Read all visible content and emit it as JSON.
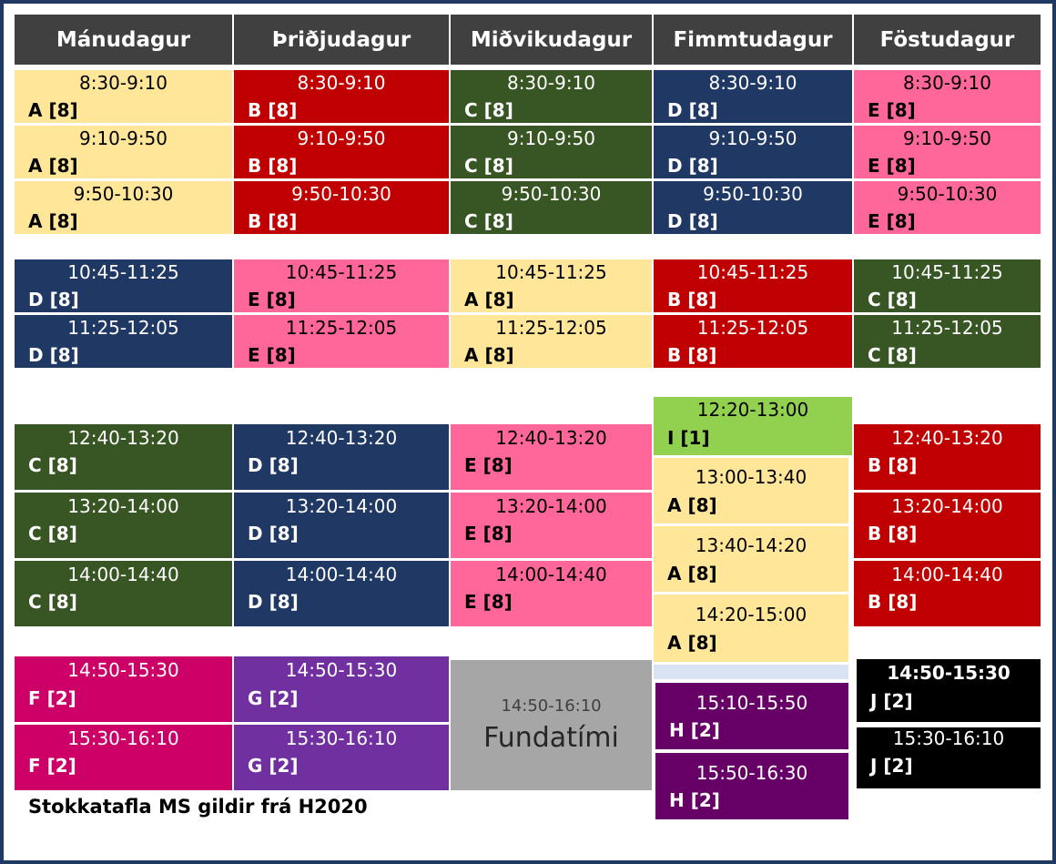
{
  "days": [
    "Mánudagur",
    "Þriðjudagur",
    "Miðvikudagur",
    "Fimmtudagur",
    "Föstudagur"
  ],
  "blocks": {
    "mon": [
      {
        "time": "8:30-9:10",
        "code": "A [8]"
      },
      {
        "time": "9:10-9:50",
        "code": "A [8]"
      },
      {
        "time": "9:50-10:30",
        "code": "A [8]"
      },
      {
        "time": "10:45-11:25",
        "code": "D [8]"
      },
      {
        "time": "11:25-12:05",
        "code": "D [8]"
      },
      {
        "time": "12:40-13:20",
        "code": "C [8]"
      },
      {
        "time": "13:20-14:00",
        "code": "C [8]"
      },
      {
        "time": "14:00-14:40",
        "code": "C [8]"
      },
      {
        "time": "14:50-15:30",
        "code": "F [2]"
      },
      {
        "time": "15:30-16:10",
        "code": "F [2]"
      }
    ],
    "tue": [
      {
        "time": "8:30-9:10",
        "code": "B [8]"
      },
      {
        "time": "9:10-9:50",
        "code": "B [8]"
      },
      {
        "time": "9:50-10:30",
        "code": "B [8]"
      },
      {
        "time": "10:45-11:25",
        "code": "E [8]"
      },
      {
        "time": "11:25-12:05",
        "code": "E [8]"
      },
      {
        "time": "12:40-13:20",
        "code": "D [8]"
      },
      {
        "time": "13:20-14:00",
        "code": "D [8]"
      },
      {
        "time": "14:00-14:40",
        "code": "D [8]"
      },
      {
        "time": "14:50-15:30",
        "code": "G [2]"
      },
      {
        "time": "15:30-16:10",
        "code": "G [2]"
      }
    ],
    "wed": [
      {
        "time": "8:30-9:10",
        "code": "C [8]"
      },
      {
        "time": "9:10-9:50",
        "code": "C [8]"
      },
      {
        "time": "9:50-10:30",
        "code": "C [8]"
      },
      {
        "time": "10:45-11:25",
        "code": "A [8]"
      },
      {
        "time": "11:25-12:05",
        "code": "A [8]"
      },
      {
        "time": "12:40-13:20",
        "code": "E [8]"
      },
      {
        "time": "13:20-14:00",
        "code": "E [8]"
      },
      {
        "time": "14:00-14:40",
        "code": "E [8]"
      }
    ],
    "thu": [
      {
        "time": "8:30-9:10",
        "code": "D [8]"
      },
      {
        "time": "9:10-9:50",
        "code": "D [8]"
      },
      {
        "time": "9:50-10:30",
        "code": "D [8]"
      },
      {
        "time": "10:45-11:25",
        "code": "B [8]"
      },
      {
        "time": "11:25-12:05",
        "code": "B [8]"
      },
      {
        "time": "12:20-13:00",
        "code": "I [1]"
      },
      {
        "time": "13:00-13:40",
        "code": "A [8]"
      },
      {
        "time": "13:40-14:20",
        "code": "A [8]"
      },
      {
        "time": "14:20-15:00",
        "code": "A [8]"
      },
      {
        "time": "15:10-15:50",
        "code": "H [2]"
      },
      {
        "time": "15:50-16:30",
        "code": "H [2]"
      }
    ],
    "fri": [
      {
        "time": "8:30-9:10",
        "code": "E [8]"
      },
      {
        "time": "9:10-9:50",
        "code": "E [8]"
      },
      {
        "time": "9:50-10:30",
        "code": "E [8]"
      },
      {
        "time": "10:45-11:25",
        "code": "C [8]"
      },
      {
        "time": "11:25-12:05",
        "code": "C [8]"
      },
      {
        "time": "12:40-13:20",
        "code": "B [8]"
      },
      {
        "time": "13:20-14:00",
        "code": "B [8]"
      },
      {
        "time": "14:00-14:40",
        "code": "B [8]"
      },
      {
        "time": "14:50-15:30",
        "code": "J [2]"
      },
      {
        "time": "15:30-16:10",
        "code": "J [2]"
      }
    ]
  },
  "meeting": {
    "time": "14:50-16:10",
    "label": "Fundatími"
  },
  "footer": "Stokkatafla MS gildir frá H2020",
  "colors": {
    "A": "#ffe699",
    "B": "#c00000",
    "C": "#375623",
    "D": "#203864",
    "E": "#ff6699",
    "F": "#cc0066",
    "G": "#7030a0",
    "H": "#660066",
    "I": "#92d050",
    "J": "#000000",
    "header": "#404040",
    "meeting": "#a6a6a6",
    "frame": "#1f3864"
  }
}
